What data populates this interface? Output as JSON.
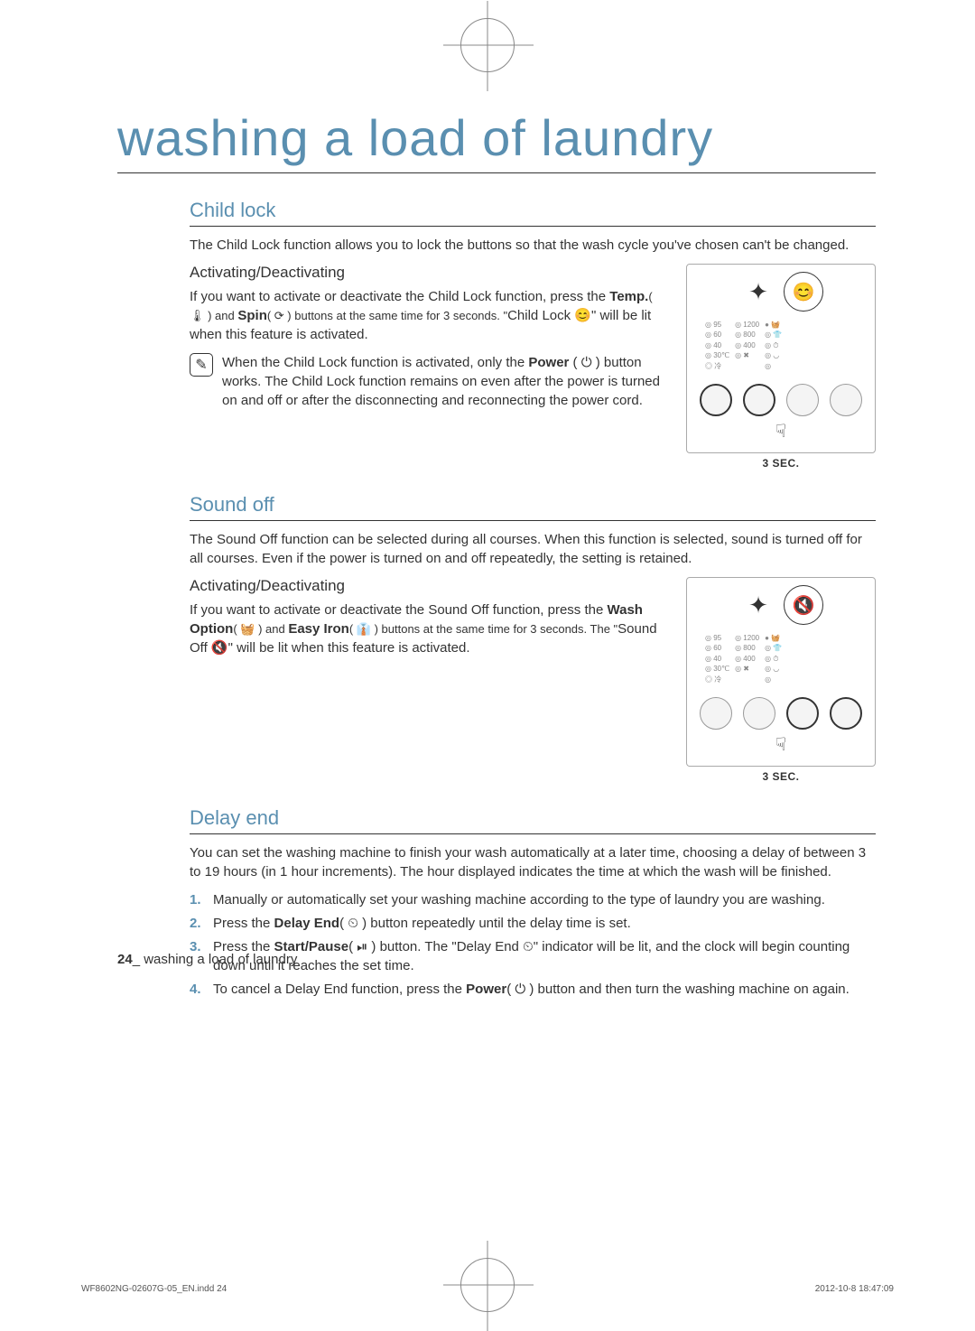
{
  "page": {
    "title": "washing a load of laundry",
    "page_number": "24",
    "footer_text": "washing a load of laundry",
    "indd_left": "WF8602NG-02607G-05_EN.indd   24",
    "indd_right": "2012-10-8   18:47:09"
  },
  "colors": {
    "accent": "#5a8fb0",
    "text": "#333333",
    "rule": "#333333",
    "panel_border": "#aaaaaa",
    "panel_text": "#888888"
  },
  "child_lock": {
    "heading": "Child lock",
    "intro": "The Child Lock function allows you to lock the buttons so that the wash cycle you've chosen can't be changed.",
    "sub": "Activating/Deactivating",
    "body_1a": "If you want to activate or deactivate the Child Lock function, press the ",
    "body_1b": "Temp.",
    "body_1c": "( 🌡 ) and ",
    "body_1d": "Spin",
    "body_1e": "( ⟳ ) buttons at the same time for 3 seconds. \"",
    "body_1f": "Child Lock 😊",
    "body_1g": "\" will be lit when this feature is activated.",
    "note_a": "When the Child Lock function is activated, only the ",
    "note_b": "Power",
    "note_c": " ( ⏻ ) button works. The Child Lock function remains on even after the power is turned on and off or after the disconnecting and reconnecting the power cord.",
    "diagram": {
      "zoom_icon": "😊",
      "sec_label": "3 SEC.",
      "panel_values_col1": [
        "◎ 95",
        "◎ 60",
        "◎ 40",
        "◎ 30℃",
        "◎ 冷"
      ],
      "panel_values_col2": [
        "◎ 1200",
        "◎ 800",
        "◎ 400",
        "◎ ✖"
      ],
      "panel_values_col3": [
        "● 🧺",
        "◎ 👕",
        "◎ ⏱",
        "◎ ◡",
        "◎"
      ],
      "highlight_knobs": [
        0,
        1
      ]
    }
  },
  "sound_off": {
    "heading": "Sound off",
    "intro": "The Sound Off function can be selected during all courses. When this function is selected, sound is turned off for all courses. Even if the power is turned on and off repeatedly, the setting is retained.",
    "sub": "Activating/Deactivating",
    "body_1a": "If you want to activate or deactivate the Sound Off function, press the ",
    "body_1b": "Wash Option",
    "body_1c": "( 🧺 ) and ",
    "body_1d": "Easy Iron",
    "body_1e": "( 👔 ) buttons at the same time for 3 seconds. The \"",
    "body_1f": "Sound Off 🔇",
    "body_1g": "\" will be lit when this feature is activated.",
    "diagram": {
      "zoom_icon": "🔇",
      "sec_label": "3 SEC.",
      "panel_values_col1": [
        "◎ 95",
        "◎ 60",
        "◎ 40",
        "◎ 30℃",
        "◎ 冷"
      ],
      "panel_values_col2": [
        "◎ 1200",
        "◎ 800",
        "◎ 400",
        "◎ ✖"
      ],
      "panel_values_col3": [
        "● 🧺",
        "◎ 👕",
        "◎ ⏱",
        "◎ ◡",
        "◎"
      ],
      "highlight_knobs": [
        2,
        3
      ]
    }
  },
  "delay_end": {
    "heading": "Delay end",
    "intro": "You can set the washing machine to finish your wash automatically at a later time, choosing a delay of between 3 to 19 hours (in 1 hour increments). The hour displayed indicates the time at which the wash will be finished.",
    "steps": [
      {
        "text": "Manually or automatically set your washing machine according to the type of laundry you are washing."
      },
      {
        "pre": "Press the ",
        "bold": "Delay End",
        "post": "( ⏲ ) button repeatedly until the delay time is set."
      },
      {
        "pre": "Press the ",
        "bold": "Start/Pause",
        "mid": "( ⏯ ) button. The \"",
        "bold2": "Delay End ⏲",
        "post": "\" indicator will be lit, and the clock will begin counting down until it reaches the set time."
      },
      {
        "pre": "To cancel a Delay End function, press the ",
        "bold": "Power",
        "post": "( ⏻ ) button and then turn the washing machine on again."
      }
    ]
  }
}
